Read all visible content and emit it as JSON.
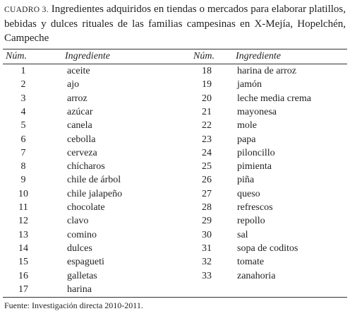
{
  "caption": {
    "label": "CUADRO 3.",
    "text": "Ingredientes adquiridos en tiendas o mercados para elaborar platillos, bebidas y dulces rituales de las familias campesinas en X-Mejía, Hopelchén, Campeche"
  },
  "table": {
    "headers": [
      "Núm.",
      "Ingrediente",
      "Núm.",
      "Ingrediente"
    ],
    "left_rows": [
      [
        1,
        "aceite"
      ],
      [
        2,
        "ajo"
      ],
      [
        3,
        "arroz"
      ],
      [
        4,
        "azúcar"
      ],
      [
        5,
        "canela"
      ],
      [
        6,
        "cebolla"
      ],
      [
        7,
        "cerveza"
      ],
      [
        8,
        "chícharos"
      ],
      [
        9,
        "chile de árbol"
      ],
      [
        10,
        "chile jalapeño"
      ],
      [
        11,
        "chocolate"
      ],
      [
        12,
        "clavo"
      ],
      [
        13,
        "comino"
      ],
      [
        14,
        "dulces"
      ],
      [
        15,
        "espagueti"
      ],
      [
        16,
        "galletas"
      ],
      [
        17,
        "harina"
      ]
    ],
    "right_rows": [
      [
        18,
        "harina de arroz"
      ],
      [
        19,
        "jamón"
      ],
      [
        20,
        "leche media crema"
      ],
      [
        21,
        "mayonesa"
      ],
      [
        22,
        "mole"
      ],
      [
        23,
        "papa"
      ],
      [
        24,
        "piloncillo"
      ],
      [
        25,
        "pimienta"
      ],
      [
        26,
        "piña"
      ],
      [
        27,
        "queso"
      ],
      [
        28,
        "refrescos"
      ],
      [
        29,
        "repollo"
      ],
      [
        30,
        "sal"
      ],
      [
        31,
        "sopa de coditos"
      ],
      [
        32,
        "tomate"
      ],
      [
        33,
        "zanahoria"
      ]
    ]
  },
  "source": "Fuente: Investigación directa 2010-2011."
}
